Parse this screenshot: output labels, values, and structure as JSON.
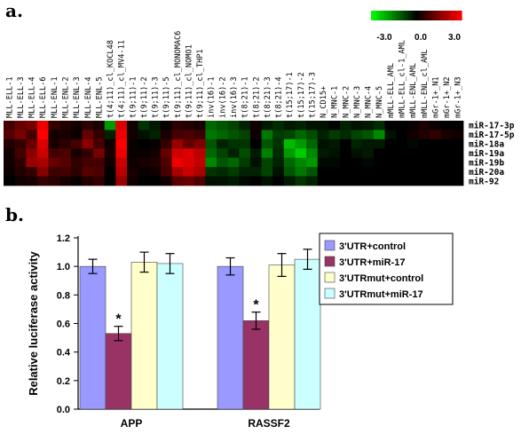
{
  "panel_a_label": "a.",
  "panel_b_label": "b.",
  "chart_data": [
    {
      "type": "heatmap",
      "colorscale": {
        "min_label": "-3.0",
        "mid_label": "0.0",
        "max_label": "3.0",
        "low_color": "#00ff00",
        "mid_color": "#000000",
        "high_color": "#ff0000"
      },
      "columns": [
        "MLL-ELL-1",
        "MLL-ELL-3",
        "MLL-ELL-4",
        "MLL-ELL-6",
        "MLL-ENL-1",
        "MLL-ENL-2",
        "MLL-ENL-3",
        "MLL-ENL-4",
        "MLL-ENL-5",
        "t(4;11)_cl_KOCL48",
        "t(4;11)_cl_MV4-11",
        "t(9;11)-1",
        "t(9;11)-2",
        "t(9;11)-3",
        "t(9;11)-5",
        "t(9;11)_cl_MONOMAC6",
        "t(9;11)_cl_NOMO1",
        "t(9;11)_cl_THP1",
        "inv(16)-1",
        "inv(16)-2",
        "inv(16)-3",
        "t(8;21)-1",
        "t(8;21)-2",
        "t(8;21)-3",
        "t(8;21)-4",
        "t(15;17)-1",
        "t(15;17)-2",
        "t(15;17)-3",
        "N_CD15+",
        "N_MNC-1",
        "N_MNC-2",
        "N_MNC-3",
        "N_MNC-4",
        "N_MNC-5",
        "mMLL-ELL_AML",
        "mMLL-ELL_cl-1_AML",
        "mMLL-ENL_AML",
        "mMLL-ENL_cl_AML",
        "mGr-1+_N1",
        "mGr-1+_N2",
        "mGr-1+_N3"
      ],
      "rows": [
        "miR-17-3p",
        "miR-17-5p",
        "miR-18a",
        "miR-19a",
        "miR-19b",
        "miR-20a",
        "miR-92"
      ],
      "values": [
        [
          0.8,
          1.2,
          1.4,
          2.8,
          0.6,
          0.4,
          0.2,
          0.5,
          0.3,
          -1.8,
          2.6,
          0.2,
          -0.6,
          -0.3,
          0.1,
          0.5,
          0.4,
          0.3,
          -1.2,
          -1.0,
          -0.8,
          -0.4,
          0.2,
          -0.3,
          -0.5,
          -0.3,
          -0.4,
          -0.2,
          -0.2,
          0.0,
          -0.4,
          -0.2,
          -0.3,
          -0.5,
          0.0,
          0.0,
          0.1,
          0.3,
          0.1,
          0.0,
          0.0
        ],
        [
          1.0,
          1.4,
          0.8,
          3.0,
          0.2,
          0.3,
          0.1,
          1.2,
          0.6,
          -0.4,
          2.8,
          0.2,
          -0.2,
          -0.4,
          0.3,
          0.8,
          0.9,
          0.7,
          -1.4,
          -1.2,
          -1.0,
          -0.8,
          0.2,
          -1.4,
          -0.7,
          -0.8,
          -1.2,
          -0.9,
          -0.4,
          -0.7,
          -0.5,
          -0.8,
          -1.0,
          -1.6,
          -0.2,
          0.0,
          0.2,
          0.4,
          0.6,
          0.3,
          0.2
        ],
        [
          0.4,
          0.6,
          1.2,
          2.6,
          0.3,
          0.5,
          0.8,
          1.6,
          0.8,
          0.2,
          3.0,
          0.1,
          0.0,
          0.1,
          0.6,
          1.8,
          1.2,
          1.5,
          -1.0,
          -0.4,
          -0.6,
          -0.6,
          0.0,
          -1.0,
          -0.6,
          -2.2,
          -1.8,
          -1.2,
          -0.2,
          -0.3,
          0.0,
          -0.4,
          -0.3,
          -0.3,
          0.0,
          0.0,
          -0.1,
          0.0,
          0.0,
          0.0,
          0.0
        ],
        [
          0.2,
          0.8,
          1.6,
          2.4,
          0.8,
          0.9,
          0.3,
          0.6,
          1.4,
          0.3,
          2.8,
          0.1,
          0.1,
          0.2,
          1.2,
          2.4,
          2.6,
          2.2,
          -1.2,
          -0.8,
          -0.4,
          -0.9,
          -0.3,
          -1.5,
          -0.5,
          -1.8,
          -2.4,
          -1.6,
          -0.3,
          -0.2,
          0.0,
          -0.2,
          -0.3,
          0.0,
          0.0,
          0.0,
          0.0,
          0.0,
          0.0,
          0.0,
          0.0
        ],
        [
          0.2,
          0.5,
          1.8,
          2.0,
          1.2,
          1.0,
          0.6,
          0.8,
          0.8,
          0.2,
          2.4,
          0.2,
          0.3,
          0.4,
          0.9,
          2.8,
          2.6,
          2.3,
          -1.6,
          -1.0,
          -1.2,
          -0.7,
          -0.2,
          -0.8,
          -0.4,
          -1.2,
          -1.6,
          -1.8,
          -0.1,
          -0.1,
          0.0,
          0.0,
          -0.1,
          0.0,
          0.0,
          0.0,
          0.0,
          0.0,
          0.0,
          0.0,
          0.0
        ],
        [
          0.1,
          0.4,
          0.6,
          1.6,
          0.7,
          0.8,
          0.5,
          1.0,
          0.9,
          0.0,
          2.2,
          0.3,
          0.1,
          0.2,
          0.8,
          2.0,
          2.4,
          2.0,
          -0.6,
          -0.5,
          -0.7,
          -0.4,
          -0.4,
          -0.8,
          -0.2,
          -1.0,
          -1.4,
          -1.0,
          0.0,
          0.0,
          0.0,
          0.0,
          0.0,
          0.0,
          0.0,
          0.0,
          0.0,
          0.0,
          0.0,
          0.0,
          0.0
        ],
        [
          0.0,
          0.2,
          0.3,
          0.6,
          0.5,
          0.3,
          0.1,
          0.4,
          0.6,
          0.0,
          1.8,
          0.2,
          0.0,
          0.0,
          0.2,
          1.0,
          1.2,
          0.9,
          -0.2,
          -0.2,
          -0.3,
          -0.1,
          0.0,
          -0.2,
          0.0,
          -0.3,
          -0.6,
          -0.4,
          0.0,
          0.0,
          0.0,
          0.0,
          0.0,
          0.0,
          0.0,
          0.0,
          0.0,
          0.0,
          0.0,
          0.0,
          0.0
        ]
      ]
    },
    {
      "type": "bar",
      "categories": [
        "APP",
        "RASSF2"
      ],
      "ylabel": "Relative luciferase activity",
      "ylim": [
        0,
        1.2
      ],
      "yticks": [
        "0.0",
        "0.2",
        "0.4",
        "0.6",
        "0.8",
        "1.0",
        "1.2"
      ],
      "series": [
        {
          "name": "3'UTR+control",
          "color": "#9999ff",
          "values": [
            1.0,
            1.0
          ],
          "errors": [
            0.05,
            0.06
          ]
        },
        {
          "name": "3'UTR+miR-17",
          "color": "#993366",
          "values": [
            0.53,
            0.62
          ],
          "errors": [
            0.05,
            0.06
          ]
        },
        {
          "name": "3'UTRmut+control",
          "color": "#ffffcc",
          "values": [
            1.03,
            1.01
          ],
          "errors": [
            0.07,
            0.08
          ]
        },
        {
          "name": "3'UTRmut+miR-17",
          "color": "#ccffff",
          "values": [
            1.02,
            1.05
          ],
          "errors": [
            0.07,
            0.07
          ]
        }
      ],
      "annotations": [
        {
          "category": "APP",
          "series": "3'UTR+miR-17",
          "text": "*"
        },
        {
          "category": "RASSF2",
          "series": "3'UTR+miR-17",
          "text": "*"
        }
      ],
      "legend": "top-right"
    }
  ]
}
